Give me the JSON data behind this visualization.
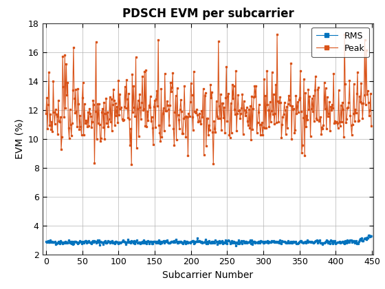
{
  "title": "PDSCH EVM per subcarrier",
  "xlabel": "Subcarrier Number",
  "ylabel": "EVM (%)",
  "xlim": [
    -5,
    452
  ],
  "ylim": [
    2,
    18
  ],
  "yticks": [
    2,
    4,
    6,
    8,
    10,
    12,
    14,
    16,
    18
  ],
  "xticks": [
    0,
    50,
    100,
    150,
    200,
    250,
    300,
    350,
    400,
    450
  ],
  "rms_color": "#0072BD",
  "peak_color": "#D95319",
  "rms_label": "RMS",
  "peak_label": "Peak",
  "n_subcarriers": 450,
  "rms_mean": 2.85,
  "rms_std": 0.07,
  "peak_mean": 11.8,
  "peak_std": 1.1,
  "background_color": "#ffffff",
  "grid_color": "#b0b0b0",
  "title_fontsize": 12,
  "axis_label_fontsize": 10,
  "tick_fontsize": 9,
  "legend_fontsize": 9,
  "seed": 42
}
